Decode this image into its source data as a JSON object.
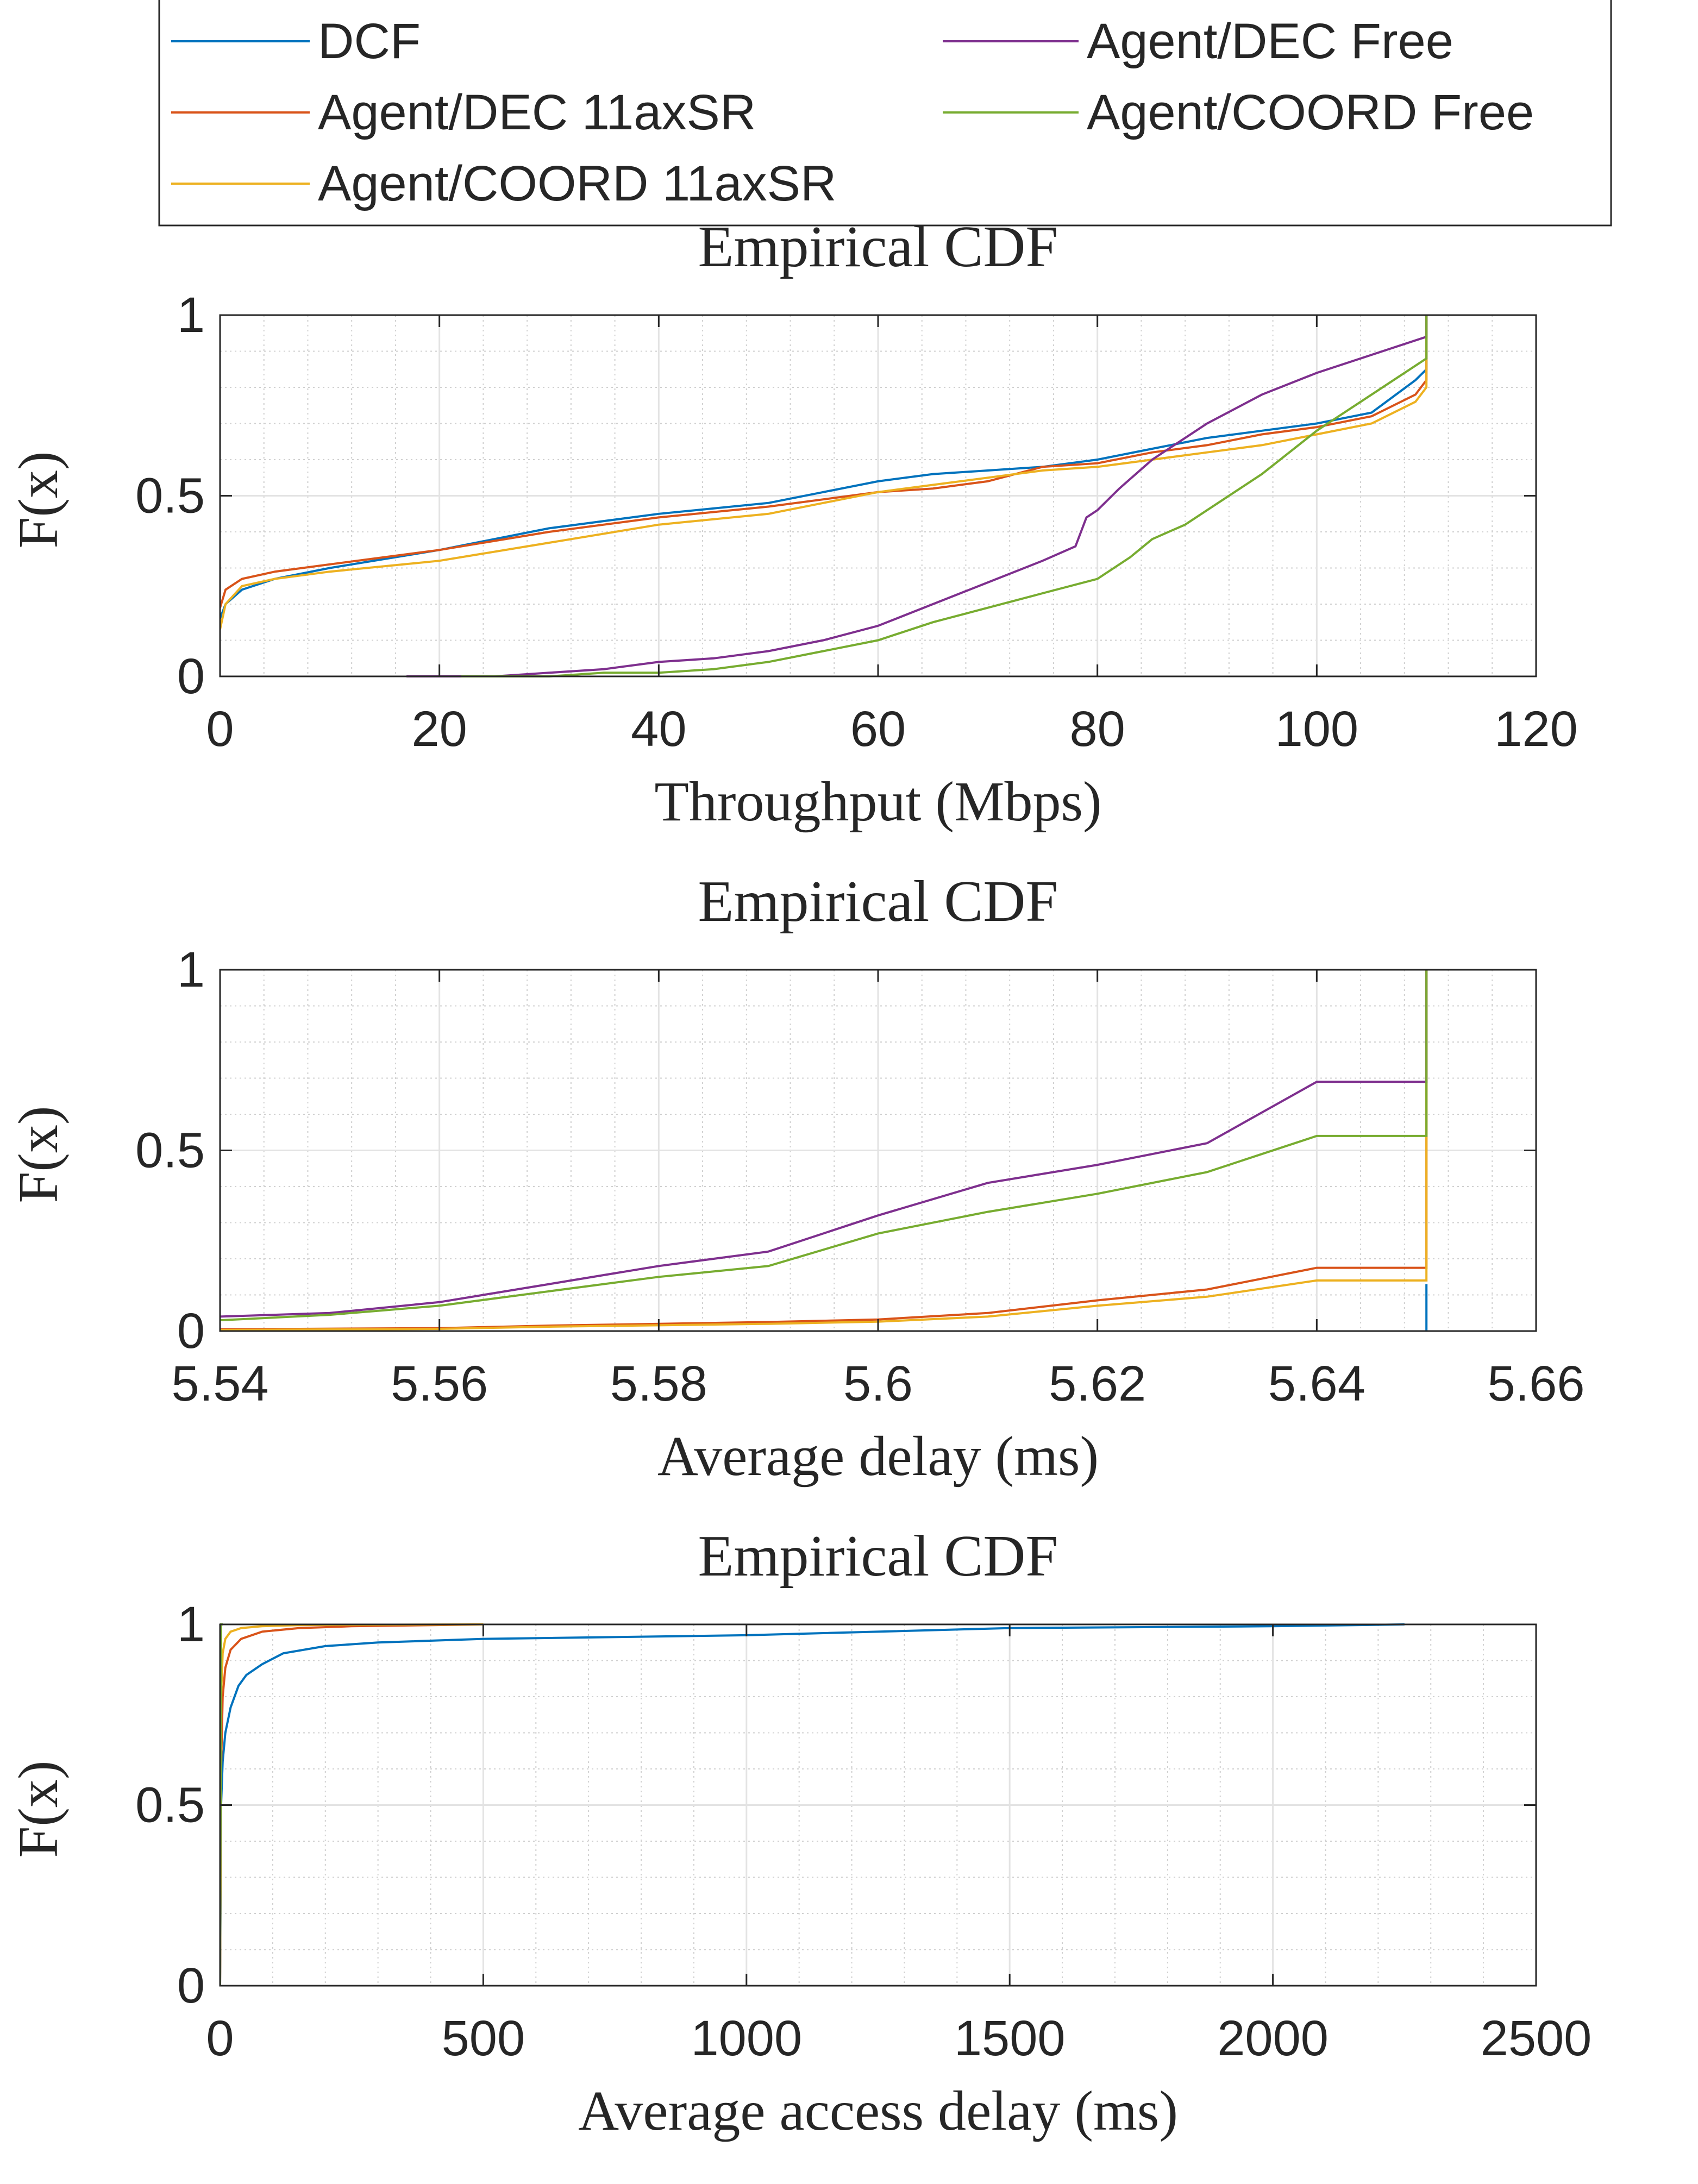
{
  "legend": {
    "entries": [
      {
        "label": "DCF",
        "color": "#0072BD"
      },
      {
        "label": "Agent/DEC Free",
        "color": "#7E2F8E"
      },
      {
        "label": "Agent/DEC 11axSR",
        "color": "#D95319"
      },
      {
        "label": "Agent/COORD Free",
        "color": "#77AC30"
      },
      {
        "label": "Agent/COORD 11axSR",
        "color": "#EDB120"
      }
    ]
  },
  "chart_data": [
    {
      "type": "line",
      "title": "Empirical CDF",
      "xlabel": "Throughput (Mbps)",
      "ylabel": "F(x)",
      "xlim": [
        0,
        120
      ],
      "ylim": [
        0,
        1
      ],
      "xticks": [
        "0",
        "20",
        "40",
        "60",
        "80",
        "100",
        "120"
      ],
      "yticks": [
        "0",
        "0.5",
        "1"
      ],
      "grid": true,
      "minor_grid": true,
      "series": [
        {
          "name": "DCF",
          "color": "#0072BD",
          "x": [
            0,
            0.5,
            2,
            5,
            10,
            20,
            30,
            40,
            50,
            55,
            60,
            65,
            70,
            75,
            80,
            85,
            90,
            95,
            100,
            105,
            109,
            110,
            110
          ],
          "y": [
            0.16,
            0.2,
            0.24,
            0.27,
            0.3,
            0.35,
            0.41,
            0.45,
            0.48,
            0.51,
            0.54,
            0.56,
            0.57,
            0.58,
            0.6,
            0.63,
            0.66,
            0.68,
            0.7,
            0.73,
            0.82,
            0.85,
            1.0
          ]
        },
        {
          "name": "Agent/DEC 11axSR",
          "color": "#D95319",
          "x": [
            0,
            0.5,
            2,
            5,
            10,
            20,
            30,
            40,
            50,
            55,
            60,
            65,
            70,
            75,
            80,
            85,
            90,
            95,
            100,
            105,
            109,
            110,
            110
          ],
          "y": [
            0.19,
            0.24,
            0.27,
            0.29,
            0.31,
            0.35,
            0.4,
            0.44,
            0.47,
            0.49,
            0.51,
            0.52,
            0.54,
            0.58,
            0.59,
            0.62,
            0.64,
            0.67,
            0.69,
            0.72,
            0.78,
            0.82,
            1.0
          ]
        },
        {
          "name": "Agent/COORD 11axSR",
          "color": "#EDB120",
          "x": [
            0,
            0.5,
            2,
            5,
            10,
            20,
            30,
            40,
            50,
            55,
            60,
            65,
            70,
            75,
            80,
            85,
            90,
            95,
            100,
            105,
            109,
            110,
            110
          ],
          "y": [
            0.13,
            0.2,
            0.25,
            0.27,
            0.29,
            0.32,
            0.37,
            0.42,
            0.45,
            0.48,
            0.51,
            0.53,
            0.55,
            0.57,
            0.58,
            0.6,
            0.62,
            0.64,
            0.67,
            0.7,
            0.76,
            0.8,
            1.0
          ]
        },
        {
          "name": "Agent/DEC Free",
          "color": "#7E2F8E",
          "x": [
            17,
            25,
            30,
            35,
            40,
            45,
            50,
            55,
            60,
            65,
            70,
            75,
            78,
            79,
            80,
            82,
            85,
            90,
            95,
            100,
            105,
            110,
            110
          ],
          "y": [
            0.0,
            0.0,
            0.01,
            0.02,
            0.04,
            0.05,
            0.07,
            0.1,
            0.14,
            0.2,
            0.26,
            0.32,
            0.36,
            0.44,
            0.46,
            0.52,
            0.6,
            0.7,
            0.78,
            0.84,
            0.89,
            0.94,
            1.0
          ]
        },
        {
          "name": "Agent/COORD Free",
          "color": "#77AC30",
          "x": [
            22,
            30,
            35,
            40,
            45,
            50,
            55,
            60,
            65,
            70,
            75,
            80,
            83,
            85,
            88,
            90,
            95,
            100,
            105,
            110,
            110
          ],
          "y": [
            0.0,
            0.0,
            0.01,
            0.01,
            0.02,
            0.04,
            0.07,
            0.1,
            0.15,
            0.19,
            0.23,
            0.27,
            0.33,
            0.38,
            0.42,
            0.46,
            0.56,
            0.68,
            0.78,
            0.88,
            1.0
          ]
        }
      ]
    },
    {
      "type": "line",
      "title": "Empirical CDF",
      "xlabel": "Average delay (ms)",
      "ylabel": "F(x)",
      "xlim": [
        5.54,
        5.66
      ],
      "ylim": [
        0,
        1
      ],
      "xticks": [
        "5.54",
        "5.56",
        "5.58",
        "5.6",
        "5.62",
        "5.64",
        "5.66"
      ],
      "yticks": [
        "0",
        "0.5",
        "1"
      ],
      "grid": true,
      "minor_grid": true,
      "series": [
        {
          "name": "DCF",
          "color": "#0072BD",
          "x": [
            5.65,
            5.65
          ],
          "y": [
            0.0,
            0.13
          ]
        },
        {
          "name": "Agent/DEC 11axSR",
          "color": "#D95319",
          "x": [
            5.54,
            5.56,
            5.57,
            5.58,
            5.59,
            5.6,
            5.61,
            5.62,
            5.63,
            5.64,
            5.65,
            5.65
          ],
          "y": [
            0.005,
            0.008,
            0.015,
            0.02,
            0.025,
            0.032,
            0.05,
            0.085,
            0.115,
            0.175,
            0.175,
            1.0
          ]
        },
        {
          "name": "Agent/COORD 11axSR",
          "color": "#EDB120",
          "x": [
            5.54,
            5.56,
            5.57,
            5.58,
            5.59,
            5.6,
            5.61,
            5.62,
            5.63,
            5.64,
            5.65,
            5.65
          ],
          "y": [
            0.003,
            0.006,
            0.012,
            0.016,
            0.02,
            0.026,
            0.04,
            0.07,
            0.095,
            0.14,
            0.14,
            1.0
          ]
        },
        {
          "name": "Agent/DEC Free",
          "color": "#7E2F8E",
          "x": [
            5.54,
            5.55,
            5.56,
            5.57,
            5.58,
            5.59,
            5.6,
            5.61,
            5.62,
            5.63,
            5.64,
            5.65,
            5.65
          ],
          "y": [
            0.04,
            0.05,
            0.08,
            0.13,
            0.18,
            0.22,
            0.32,
            0.41,
            0.46,
            0.52,
            0.69,
            0.69,
            1.0
          ]
        },
        {
          "name": "Agent/COORD Free",
          "color": "#77AC30",
          "x": [
            5.54,
            5.55,
            5.56,
            5.57,
            5.58,
            5.59,
            5.6,
            5.61,
            5.62,
            5.63,
            5.64,
            5.65,
            5.65
          ],
          "y": [
            0.03,
            0.045,
            0.07,
            0.11,
            0.15,
            0.18,
            0.27,
            0.33,
            0.38,
            0.44,
            0.54,
            0.54,
            1.0
          ]
        }
      ]
    },
    {
      "type": "line",
      "title": "Empirical CDF",
      "xlabel": "Average access delay (ms)",
      "ylabel": "F(x)",
      "xlim": [
        0,
        2500
      ],
      "ylim": [
        0,
        1
      ],
      "xticks": [
        "0",
        "500",
        "1000",
        "1500",
        "2000",
        "2500"
      ],
      "yticks": [
        "0",
        "0.5",
        "1"
      ],
      "grid": true,
      "minor_grid": true,
      "series": [
        {
          "name": "DCF",
          "color": "#0072BD",
          "x": [
            0,
            2,
            5,
            10,
            20,
            35,
            50,
            80,
            120,
            200,
            300,
            500,
            1000,
            1500,
            2000,
            2250
          ],
          "y": [
            0.0,
            0.5,
            0.62,
            0.7,
            0.77,
            0.83,
            0.86,
            0.89,
            0.92,
            0.94,
            0.95,
            0.96,
            0.97,
            0.99,
            0.995,
            1.0
          ]
        },
        {
          "name": "Agent/DEC 11axSR",
          "color": "#D95319",
          "x": [
            0,
            2,
            5,
            10,
            20,
            40,
            80,
            150,
            250,
            500
          ],
          "y": [
            0.0,
            0.6,
            0.8,
            0.88,
            0.93,
            0.96,
            0.98,
            0.99,
            0.995,
            1.0
          ]
        },
        {
          "name": "Agent/COORD 11axSR",
          "color": "#EDB120",
          "x": [
            0,
            2,
            5,
            10,
            20,
            40,
            80,
            150,
            250,
            500
          ],
          "y": [
            0.0,
            0.8,
            0.92,
            0.96,
            0.98,
            0.99,
            0.995,
            0.998,
            0.999,
            1.0
          ]
        },
        {
          "name": "Agent/DEC Free",
          "color": "#7E2F8E",
          "x": [
            0,
            2,
            5
          ],
          "y": [
            0.0,
            1.0,
            1.0
          ]
        },
        {
          "name": "Agent/COORD Free",
          "color": "#77AC30",
          "x": [
            0,
            2,
            5
          ],
          "y": [
            0.0,
            1.0,
            1.0
          ]
        }
      ]
    }
  ]
}
